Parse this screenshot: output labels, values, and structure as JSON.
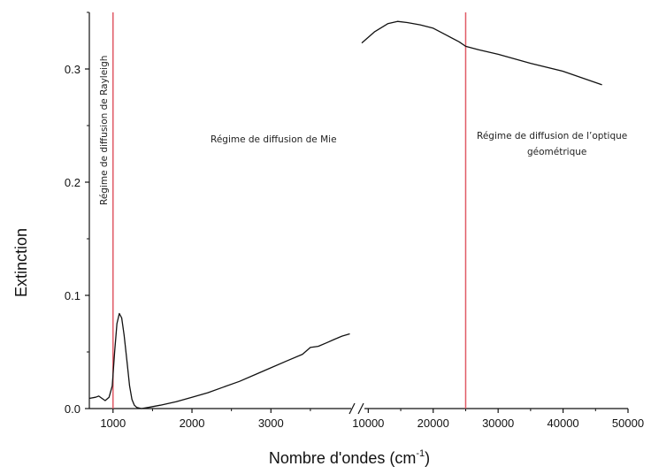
{
  "chart_data": {
    "type": "line",
    "title": "",
    "xlabel": "Nombre d'ondes (cm",
    "xlabel_sup": "-1",
    "xlabel_close": ")",
    "ylabel": "Extinction",
    "ylim": [
      0,
      0.35
    ],
    "y_ticks": [
      "0.0",
      "0.1",
      "0.2",
      "0.3"
    ],
    "y_tick_values": [
      0,
      0.1,
      0.2,
      0.3
    ],
    "x_axis_broken": true,
    "x_ticks_left": [
      "1000",
      "2000",
      "3000"
    ],
    "x_tick_values_left": [
      1000,
      2000,
      3000
    ],
    "x_ticks_right": [
      "10000",
      "20000",
      "30000",
      "40000",
      "50000"
    ],
    "x_tick_values_right": [
      10000,
      20000,
      30000,
      40000,
      50000
    ],
    "xlim_left": [
      700,
      4050
    ],
    "xlim_right": [
      9000,
      50000
    ],
    "color_line": "#111111",
    "color_marker": "#e05a66",
    "series": [
      {
        "values_left": [
          [
            700,
            0.009
          ],
          [
            780,
            0.01
          ],
          [
            820,
            0.011
          ],
          [
            860,
            0.009
          ],
          [
            900,
            0.007
          ],
          [
            950,
            0.01
          ],
          [
            990,
            0.02
          ],
          [
            1020,
            0.05
          ],
          [
            1050,
            0.075
          ],
          [
            1080,
            0.084
          ],
          [
            1110,
            0.08
          ],
          [
            1140,
            0.065
          ],
          [
            1180,
            0.04
          ],
          [
            1210,
            0.02
          ],
          [
            1240,
            0.008
          ],
          [
            1270,
            0.003
          ],
          [
            1300,
            0.001
          ],
          [
            1360,
            0.0
          ],
          [
            1450,
            0.001
          ],
          [
            1600,
            0.003
          ],
          [
            1800,
            0.006
          ],
          [
            2000,
            0.01
          ],
          [
            2200,
            0.014
          ],
          [
            2400,
            0.019
          ],
          [
            2600,
            0.024
          ],
          [
            2800,
            0.03
          ],
          [
            3000,
            0.036
          ],
          [
            3200,
            0.042
          ],
          [
            3400,
            0.048
          ],
          [
            3500,
            0.054
          ],
          [
            3600,
            0.055
          ],
          [
            3700,
            0.058
          ],
          [
            3800,
            0.061
          ],
          [
            3900,
            0.064
          ],
          [
            4000,
            0.066
          ]
        ],
        "values_right": [
          [
            9000,
            0.323
          ],
          [
            11000,
            0.333
          ],
          [
            13000,
            0.34
          ],
          [
            14500,
            0.342
          ],
          [
            16000,
            0.341
          ],
          [
            18000,
            0.339
          ],
          [
            20000,
            0.336
          ],
          [
            22000,
            0.33
          ],
          [
            24000,
            0.324
          ],
          [
            25000,
            0.32
          ],
          [
            27000,
            0.317
          ],
          [
            30000,
            0.313
          ],
          [
            35000,
            0.305
          ],
          [
            40000,
            0.298
          ],
          [
            46000,
            0.286
          ]
        ]
      }
    ],
    "markers": [
      {
        "panel": "left",
        "x": 1000
      },
      {
        "panel": "right",
        "x": 25000
      }
    ],
    "annotations": {
      "rayleigh": "Régime de diffusion de Rayleigh",
      "mie": "Régime de diffusion de Mie",
      "geo_line1": "Régime de diffusion de l’optique",
      "geo_line2": "géométrique"
    }
  }
}
